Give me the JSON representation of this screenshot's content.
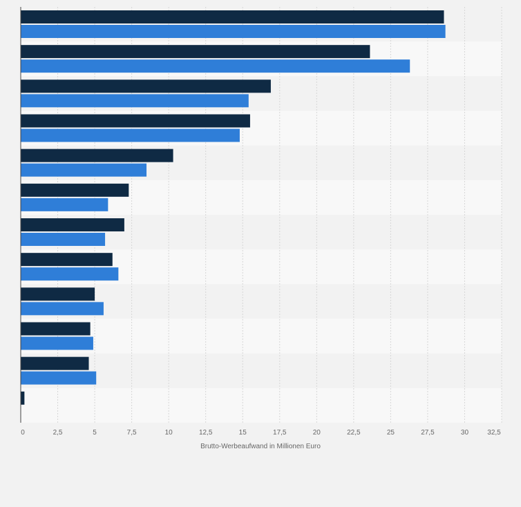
{
  "chart_data": {
    "type": "bar",
    "orientation": "horizontal",
    "categories": [
      "",
      "",
      "",
      "",
      "",
      "",
      "",
      "",
      "",
      "",
      "",
      ""
    ],
    "series": [
      {
        "color": "#0f2a44",
        "values": [
          28.6,
          23.6,
          16.9,
          15.5,
          10.3,
          7.3,
          7.0,
          6.2,
          5.0,
          4.7,
          4.6,
          0.25
        ]
      },
      {
        "color": "#2f7ed8",
        "values": [
          28.7,
          26.3,
          15.4,
          14.8,
          8.5,
          5.9,
          5.7,
          6.6,
          5.6,
          4.9,
          5.1,
          null
        ]
      }
    ],
    "x_ticks": [
      "0",
      "2,5",
      "5",
      "7,5",
      "10",
      "12,5",
      "15",
      "17,5",
      "20",
      "22,5",
      "25",
      "27,5",
      "30",
      "32,5"
    ],
    "x_tick_values": [
      0,
      2.5,
      5,
      7.5,
      10,
      12.5,
      15,
      17.5,
      20,
      22.5,
      25,
      27.5,
      30,
      32.5
    ],
    "xlabel": "Brutto-Werbeaufwand in Millionen Euro",
    "xlim": [
      0,
      32.5
    ],
    "grid": true,
    "legend": "none"
  }
}
